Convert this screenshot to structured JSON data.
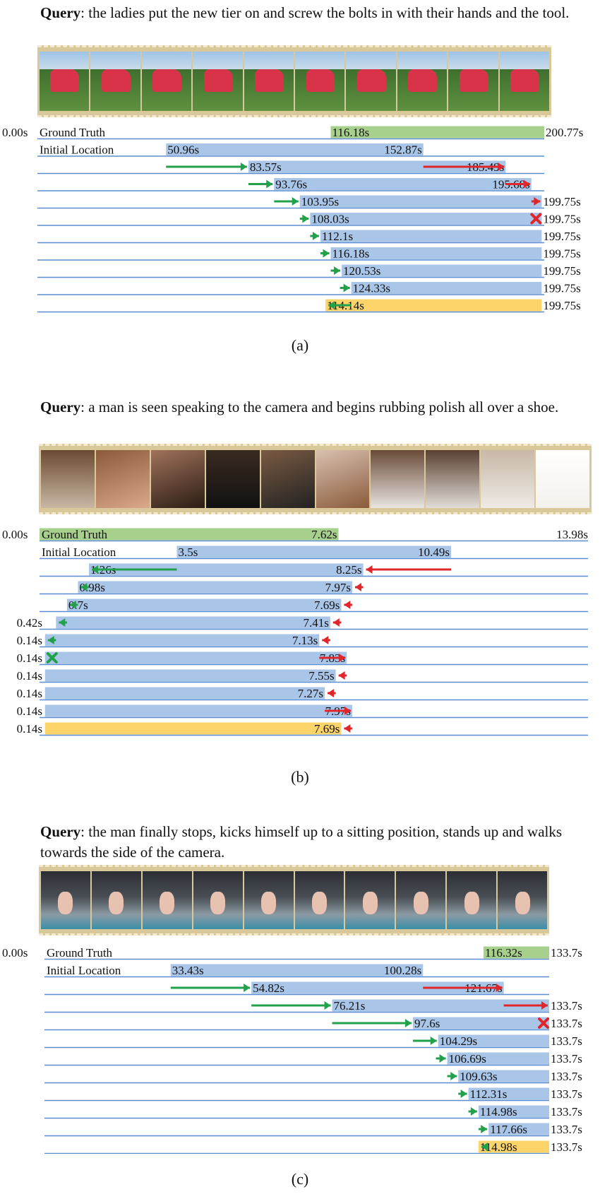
{
  "panels": [
    {
      "query_label": "Query",
      "query_text": ": the ladies put the new tier on and screw the bolts in with their hands and the tool.",
      "caption": "(a)",
      "frames_theme": "red-car-on-grass",
      "start_label": "0.00s",
      "gt_label": "Ground Truth",
      "init_label": "Initial Location",
      "chart_data": {
        "type": "timeline",
        "duration": 200.77,
        "ground_truth": {
          "start": 116.18,
          "end": 200.77,
          "start_label": "116.18s",
          "end_label": "200.77s"
        },
        "initial": {
          "start": 50.96,
          "end": 152.87,
          "start_label": "50.96s",
          "end_label": "152.87s"
        },
        "steps": [
          {
            "start": 83.57,
            "end": 185.49,
            "start_label": "83.57s",
            "end_label": "185.49s",
            "left_move": "right",
            "right_move": "right"
          },
          {
            "start": 93.76,
            "end": 195.68,
            "start_label": "93.76s",
            "end_label": "195.68s",
            "left_move": "right",
            "right_move": "right"
          },
          {
            "start": 103.95,
            "end": 199.75,
            "start_label": "103.95s",
            "end_label": "199.75s",
            "left_move": "right",
            "right_move": "right"
          },
          {
            "start": 108.03,
            "end": 199.75,
            "start_label": "108.03s",
            "end_label": "199.75s",
            "left_move": "right",
            "right_move": "stop"
          },
          {
            "start": 112.1,
            "end": 199.75,
            "start_label": "112.1s",
            "end_label": "199.75s",
            "left_move": "right",
            "right_move": "none"
          },
          {
            "start": 116.18,
            "end": 199.75,
            "start_label": "116.18s",
            "end_label": "199.75s",
            "left_move": "right",
            "right_move": "none"
          },
          {
            "start": 120.53,
            "end": 199.75,
            "start_label": "120.53s",
            "end_label": "199.75s",
            "left_move": "right",
            "right_move": "none"
          },
          {
            "start": 124.33,
            "end": 199.75,
            "start_label": "124.33s",
            "end_label": "199.75s",
            "left_move": "right",
            "right_move": "none"
          }
        ],
        "final": {
          "start": 114.14,
          "end": 199.75,
          "start_label": "114.14s",
          "end_label": "199.75s",
          "left_move": "left",
          "right_move": "none"
        }
      }
    },
    {
      "query_label": "Query",
      "query_text": ": a man is seen speaking to the camera and begins rubbing polish all over a shoe.",
      "caption": "(b)",
      "frames_theme": "shoe-polish",
      "start_label": "0.00s",
      "gt_label": "Ground Truth",
      "init_label": "Initial Location",
      "chart_data": {
        "type": "timeline",
        "duration": 13.98,
        "ground_truth": {
          "start": 0,
          "end": 7.62,
          "start_label": "",
          "end_label": "7.62s",
          "tail_label": "13.98s"
        },
        "initial": {
          "start": 3.5,
          "end": 10.49,
          "start_label": "3.5s",
          "end_label": "10.49s"
        },
        "steps": [
          {
            "start": 1.26,
            "end": 8.25,
            "start_label": "1.26s",
            "end_label": "8.25s",
            "left_move": "left",
            "right_move": "left"
          },
          {
            "start": 0.98,
            "end": 7.97,
            "start_label": "0.98s",
            "end_label": "7.97s",
            "left_move": "left",
            "right_move": "left"
          },
          {
            "start": 0.7,
            "end": 7.69,
            "start_label": "0.7s",
            "end_label": "7.69s",
            "left_move": "left",
            "right_move": "left"
          },
          {
            "start": 0.42,
            "end": 7.41,
            "start_label": "0.42s",
            "end_label": "7.41s",
            "left_move": "left",
            "right_move": "left"
          },
          {
            "start": 0.14,
            "end": 7.13,
            "start_label": "0.14s",
            "end_label": "7.13s",
            "left_move": "left",
            "right_move": "left"
          },
          {
            "start": 0.14,
            "end": 7.83,
            "start_label": "0.14s",
            "end_label": "7.83s",
            "left_move": "stop",
            "right_move": "right"
          },
          {
            "start": 0.14,
            "end": 7.55,
            "start_label": "0.14s",
            "end_label": "7.55s",
            "left_move": "none",
            "right_move": "left"
          },
          {
            "start": 0.14,
            "end": 7.27,
            "start_label": "0.14s",
            "end_label": "7.27s",
            "left_move": "none",
            "right_move": "left"
          },
          {
            "start": 0.14,
            "end": 7.97,
            "start_label": "0.14s",
            "end_label": "7.97s",
            "left_move": "none",
            "right_move": "right"
          }
        ],
        "final": {
          "start": 0.14,
          "end": 7.69,
          "start_label": "0.14s",
          "end_label": "7.69s",
          "left_move": "none",
          "right_move": "left"
        }
      }
    },
    {
      "query_label": "Query",
      "query_text": ": the man finally stops, kicks himself up to a sitting position, stands up and walks towards the side of the camera.",
      "caption": "(c)",
      "frames_theme": "floor-exercise",
      "start_label": "0.00s",
      "gt_label": "Ground Truth",
      "init_label": "Initial Location",
      "chart_data": {
        "type": "timeline",
        "duration": 133.7,
        "ground_truth": {
          "start": 116.32,
          "end": 133.7,
          "start_label": "116.32s",
          "end_label": "133.7s"
        },
        "initial": {
          "start": 33.43,
          "end": 100.28,
          "start_label": "33.43s",
          "end_label": "100.28s"
        },
        "steps": [
          {
            "start": 54.82,
            "end": 121.67,
            "start_label": "54.82s",
            "end_label": "121.67s",
            "left_move": "right",
            "right_move": "right"
          },
          {
            "start": 76.21,
            "end": 133.7,
            "start_label": "76.21s",
            "end_label": "133.7s",
            "left_move": "right",
            "right_move": "right"
          },
          {
            "start": 97.6,
            "end": 133.7,
            "start_label": "97.6s",
            "end_label": "133.7s",
            "left_move": "right",
            "right_move": "stop"
          },
          {
            "start": 104.29,
            "end": 133.7,
            "start_label": "104.29s",
            "end_label": "133.7s",
            "left_move": "right",
            "right_move": "none"
          },
          {
            "start": 106.69,
            "end": 133.7,
            "start_label": "106.69s",
            "end_label": "133.7s",
            "left_move": "right",
            "right_move": "none"
          },
          {
            "start": 109.63,
            "end": 133.7,
            "start_label": "109.63s",
            "end_label": "133.7s",
            "left_move": "right",
            "right_move": "none"
          },
          {
            "start": 112.31,
            "end": 133.7,
            "start_label": "112.31s",
            "end_label": "133.7s",
            "left_move": "right",
            "right_move": "none"
          },
          {
            "start": 114.98,
            "end": 133.7,
            "start_label": "114.98s",
            "end_label": "133.7s",
            "left_move": "right",
            "right_move": "none"
          },
          {
            "start": 117.66,
            "end": 133.7,
            "start_label": "117.66s",
            "end_label": "133.7s",
            "left_move": "right",
            "right_move": "none"
          }
        ],
        "final": {
          "start": 114.98,
          "end": 133.7,
          "start_label": "114.98s",
          "end_label": "133.7s",
          "left_move": "left",
          "right_move": "none"
        }
      }
    }
  ],
  "colors": {
    "ground_truth": "#a8d08d",
    "prediction": "#a9c5e8",
    "final": "#fcd46a",
    "baseline": "#5b8ed1",
    "arrow_right": "#22a04b",
    "arrow_left_red": "#e0262b",
    "stop": "#e0262b",
    "stop_green": "#22a04b"
  }
}
